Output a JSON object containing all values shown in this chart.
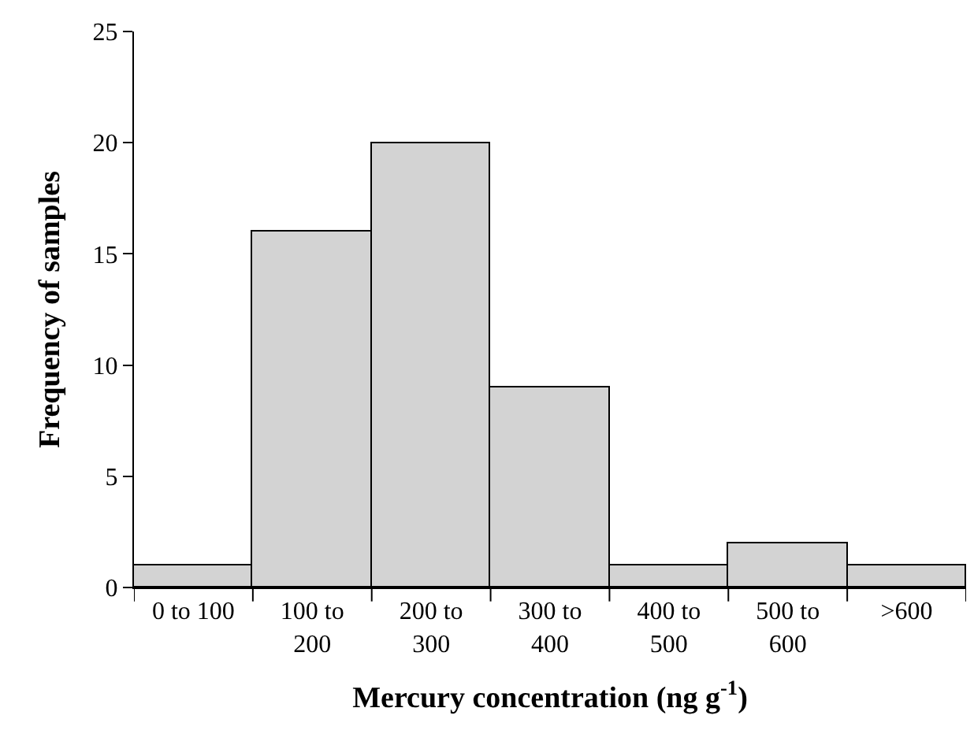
{
  "chart_data": {
    "type": "bar",
    "xlabel": "Mercury concentration (ng g$^{-1}$)",
    "ylabel": "Frequency of samples",
    "categories": [
      "0 to 100",
      "100 to\n200",
      "200 to\n300",
      "300 to\n400",
      "400 to\n500",
      "500 to\n600",
      ">600"
    ],
    "values": [
      1,
      16,
      20,
      9,
      1,
      2,
      1
    ],
    "color": "#d3d3d3",
    "ylim": [
      0,
      25
    ],
    "yticks": [
      0,
      5,
      10,
      15,
      20,
      25
    ]
  }
}
